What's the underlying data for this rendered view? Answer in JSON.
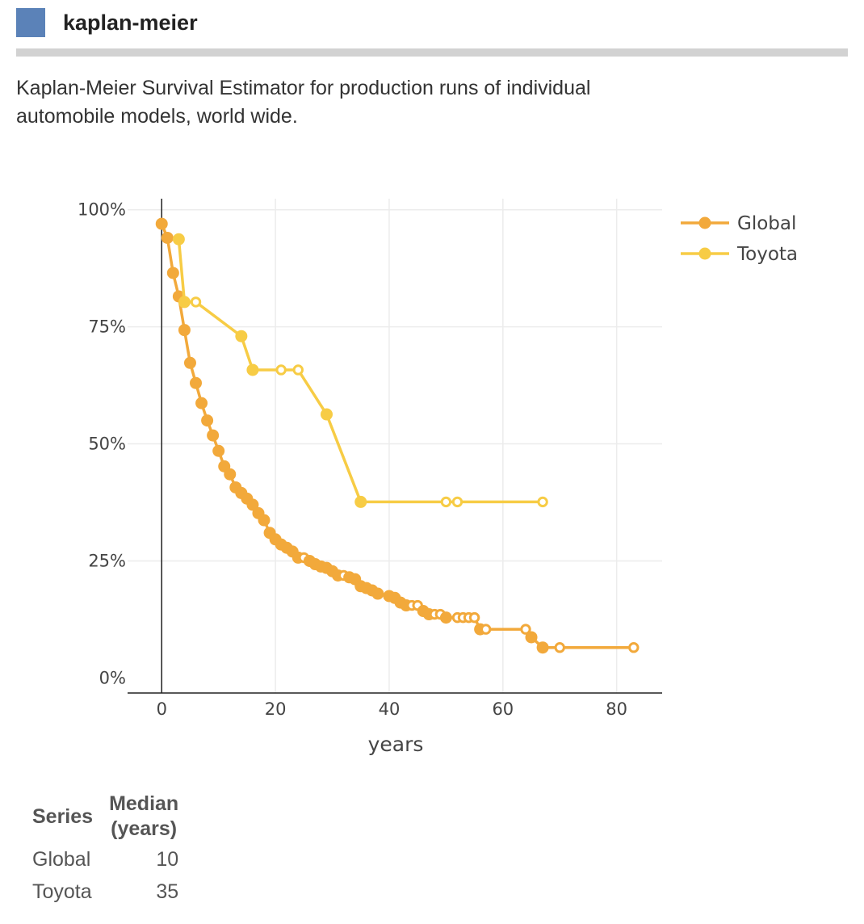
{
  "header": {
    "title": "kaplan-meier",
    "icon": "square-icon",
    "icon_color": "#5b82b8",
    "rule_color": "#d2d2d2"
  },
  "description": "Kaplan-Meier Survival Estimator for production runs of individual automobile models, world wide.",
  "chart_data": {
    "type": "line",
    "xlabel": "years",
    "ylabel": "",
    "xlim": [
      -6,
      88
    ],
    "ylim": [
      0,
      1
    ],
    "x_ticks": [
      0,
      20,
      40,
      60,
      80
    ],
    "y_ticks": [
      0,
      0.25,
      0.5,
      0.75,
      1
    ],
    "y_tick_labels": [
      "0%",
      "25%",
      "50%",
      "75%",
      "100%"
    ],
    "grid": true,
    "legend_position": "top-right",
    "series": [
      {
        "name": "Global",
        "color": "#f2a93b",
        "points": [
          [
            0,
            0.97,
            0
          ],
          [
            1,
            0.94,
            0
          ],
          [
            2,
            0.865,
            0
          ],
          [
            3,
            0.815,
            0
          ],
          [
            4,
            0.743,
            0
          ],
          [
            5,
            0.673,
            0
          ],
          [
            6,
            0.63,
            0
          ],
          [
            7,
            0.587,
            0
          ],
          [
            8,
            0.55,
            0
          ],
          [
            9,
            0.518,
            0
          ],
          [
            10,
            0.485,
            0
          ],
          [
            11,
            0.452,
            0
          ],
          [
            12,
            0.435,
            0
          ],
          [
            13,
            0.407,
            0
          ],
          [
            14,
            0.395,
            0
          ],
          [
            15,
            0.383,
            0
          ],
          [
            16,
            0.37,
            0
          ],
          [
            17,
            0.352,
            0
          ],
          [
            18,
            0.337,
            0
          ],
          [
            19,
            0.31,
            0
          ],
          [
            20,
            0.296,
            0
          ],
          [
            21,
            0.285,
            0
          ],
          [
            22,
            0.278,
            0
          ],
          [
            23,
            0.27,
            0
          ],
          [
            24,
            0.257,
            0
          ],
          [
            25,
            0.257,
            1
          ],
          [
            26,
            0.25,
            0
          ],
          [
            27,
            0.243,
            0
          ],
          [
            28,
            0.238,
            0
          ],
          [
            29,
            0.235,
            0
          ],
          [
            30,
            0.228,
            0
          ],
          [
            31,
            0.219,
            0
          ],
          [
            32,
            0.219,
            1
          ],
          [
            33,
            0.215,
            0
          ],
          [
            34,
            0.211,
            0
          ],
          [
            35,
            0.196,
            0
          ],
          [
            36,
            0.192,
            0
          ],
          [
            37,
            0.187,
            0
          ],
          [
            38,
            0.18,
            0
          ],
          [
            40,
            0.175,
            0
          ],
          [
            41,
            0.171,
            0
          ],
          [
            42,
            0.161,
            0
          ],
          [
            43,
            0.155,
            0
          ],
          [
            44,
            0.155,
            1
          ],
          [
            45,
            0.155,
            1
          ],
          [
            46,
            0.143,
            0
          ],
          [
            47,
            0.136,
            0
          ],
          [
            48,
            0.136,
            1
          ],
          [
            49,
            0.136,
            1
          ],
          [
            50,
            0.129,
            0
          ],
          [
            52,
            0.129,
            1
          ],
          [
            53,
            0.129,
            1
          ],
          [
            54,
            0.129,
            1
          ],
          [
            55,
            0.129,
            1
          ],
          [
            56,
            0.104,
            0
          ],
          [
            57,
            0.104,
            1
          ],
          [
            64,
            0.104,
            1
          ],
          [
            65,
            0.087,
            0
          ],
          [
            67,
            0.065,
            0
          ],
          [
            70,
            0.065,
            1
          ],
          [
            83,
            0.065,
            1
          ]
        ]
      },
      {
        "name": "Toyota",
        "color": "#f7cc45",
        "points": [
          [
            3,
            0.937,
            0
          ],
          [
            4,
            0.803,
            0
          ],
          [
            6,
            0.803,
            1
          ],
          [
            14,
            0.73,
            0
          ],
          [
            16,
            0.658,
            0
          ],
          [
            21,
            0.658,
            1
          ],
          [
            24,
            0.658,
            1
          ],
          [
            29,
            0.563,
            0
          ],
          [
            35,
            0.376,
            0
          ],
          [
            50,
            0.376,
            1
          ],
          [
            52,
            0.376,
            1
          ],
          [
            67,
            0.376,
            1
          ]
        ]
      }
    ]
  },
  "table": {
    "headers": {
      "series": "Series",
      "median_line1": "Median",
      "median_line2": "(years)"
    },
    "rows": [
      {
        "series": "Global",
        "median": "10"
      },
      {
        "series": "Toyota",
        "median": "35"
      }
    ]
  }
}
